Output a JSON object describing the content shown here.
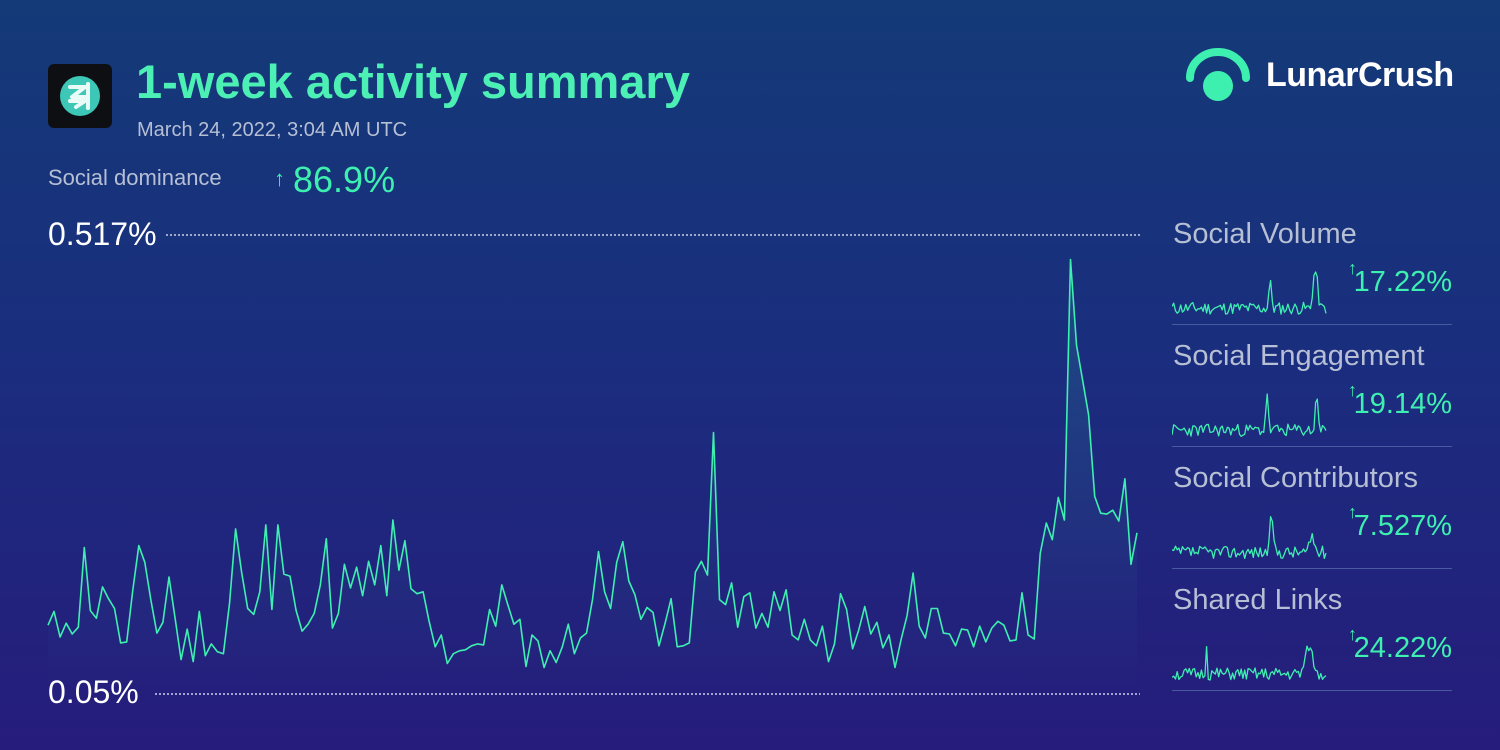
{
  "header": {
    "title": "1-week activity summary",
    "timestamp": "March 24, 2022, 3:04 AM UTC"
  },
  "brand": {
    "name": "LunarCrush"
  },
  "dominance": {
    "label": "Social dominance",
    "arrow": "↑",
    "value": "86.9%"
  },
  "metrics": [
    {
      "label": "Social Volume",
      "arrow": "↑",
      "value": "17.22%"
    },
    {
      "label": "Social Engagement",
      "arrow": "↑",
      "value": "19.14%"
    },
    {
      "label": "Social Contributors",
      "arrow": "↑",
      "value": "7.527%"
    },
    {
      "label": "Shared Links",
      "arrow": "↑",
      "value": "24.22%"
    }
  ],
  "colors": {
    "accent": "#3ef0b0",
    "title": "#4cf0b4",
    "text_muted": "#b6bfd4",
    "background_top": "#143a78",
    "background_bottom": "#261c7c",
    "gridline": "#c9d2ea",
    "divider": "#4a5aa0"
  },
  "icons": {
    "coin_logo": "coin-logo-icon",
    "brand_logo": "lunarcrush-logo-icon"
  },
  "chart_data": {
    "type": "area",
    "title": "Social dominance",
    "ylim": [
      0.05,
      0.517
    ],
    "y_tick_labels": [
      "0.517%",
      "0.05%"
    ],
    "grid": "dotted lines at min and max",
    "series": [
      {
        "values": [
          0.12,
          0.134,
          0.108,
          0.122,
          0.111,
          0.118,
          0.199,
          0.135,
          0.127,
          0.159,
          0.147,
          0.137,
          0.102,
          0.103,
          0.155,
          0.201,
          0.184,
          0.146,
          0.112,
          0.123,
          0.169,
          0.127,
          0.085,
          0.116,
          0.083,
          0.134,
          0.089,
          0.101,
          0.093,
          0.091,
          0.142,
          0.218,
          0.174,
          0.137,
          0.131,
          0.154,
          0.222,
          0.136,
          0.222,
          0.172,
          0.17,
          0.135,
          0.114,
          0.121,
          0.132,
          0.161,
          0.208,
          0.117,
          0.132,
          0.182,
          0.158,
          0.179,
          0.15,
          0.185,
          0.161,
          0.201,
          0.15,
          0.227,
          0.176,
          0.206,
          0.157,
          0.152,
          0.154,
          0.124,
          0.098,
          0.11,
          0.081,
          0.091,
          0.094,
          0.095,
          0.099,
          0.101,
          0.1,
          0.136,
          0.119,
          0.161,
          0.141,
          0.121,
          0.126,
          0.078,
          0.11,
          0.104,
          0.077,
          0.094,
          0.082,
          0.098,
          0.121,
          0.091,
          0.107,
          0.112,
          0.146,
          0.195,
          0.154,
          0.137,
          0.184,
          0.205,
          0.165,
          0.151,
          0.126,
          0.138,
          0.133,
          0.099,
          0.122,
          0.147,
          0.098,
          0.099,
          0.102,
          0.174,
          0.185,
          0.171,
          0.316,
          0.146,
          0.141,
          0.163,
          0.118,
          0.149,
          0.153,
          0.117,
          0.132,
          0.118,
          0.154,
          0.135,
          0.156,
          0.11,
          0.105,
          0.126,
          0.105,
          0.099,
          0.119,
          0.083,
          0.101,
          0.152,
          0.136,
          0.096,
          0.115,
          0.139,
          0.111,
          0.123,
          0.097,
          0.11,
          0.077,
          0.105,
          0.13,
          0.173,
          0.119,
          0.107,
          0.137,
          0.137,
          0.112,
          0.111,
          0.099,
          0.116,
          0.115,
          0.098,
          0.119,
          0.103,
          0.117,
          0.124,
          0.12,
          0.104,
          0.105,
          0.153,
          0.11,
          0.106,
          0.193,
          0.224,
          0.207,
          0.25,
          0.227,
          0.492,
          0.405,
          0.37,
          0.334,
          0.251,
          0.234,
          0.233,
          0.237,
          0.226,
          0.269,
          0.182,
          0.214
        ]
      }
    ]
  }
}
